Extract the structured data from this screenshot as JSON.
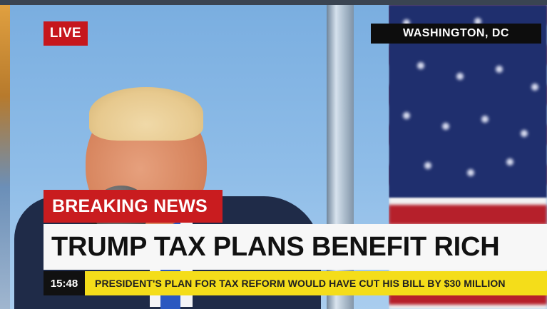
{
  "live_badge": {
    "label": "LIVE",
    "color": "#c6171d"
  },
  "location_badge": {
    "label": "WASHINGTON, DC"
  },
  "breaking_bar": {
    "label": "BREAKING NEWS",
    "color": "#c91c1f"
  },
  "headline": {
    "text": "TRUMP TAX PLANS BENEFIT RICH"
  },
  "ticker": {
    "time": "15:48",
    "text": "PRESIDENT'S PLAN FOR TAX REFORM WOULD HAVE CUT HIS BILL BY $30 MILLION",
    "color": "#f4dd1a"
  },
  "background": {
    "icons": [
      "speaker-figure",
      "microphone-icon",
      "american-flag",
      "flag-pole"
    ]
  }
}
